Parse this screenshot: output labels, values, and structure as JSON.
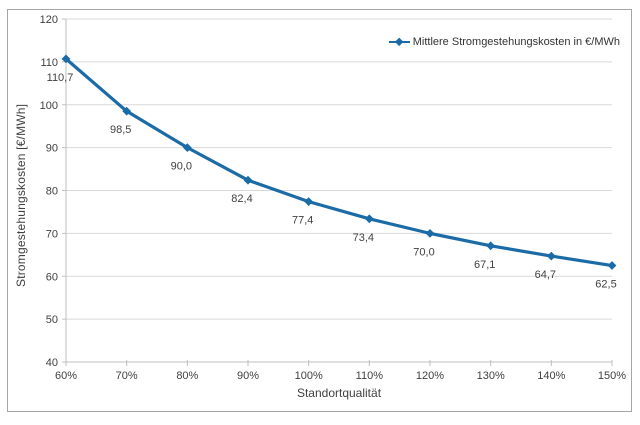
{
  "chart_data": {
    "type": "line",
    "categories": [
      "60%",
      "70%",
      "80%",
      "90%",
      "100%",
      "110%",
      "120%",
      "130%",
      "140%",
      "150%"
    ],
    "values": [
      110.7,
      98.5,
      90.0,
      82.4,
      77.4,
      73.4,
      70.0,
      67.1,
      64.7,
      62.5
    ],
    "point_labels": [
      "110,7",
      "98,5",
      "90,0",
      "82,4",
      "77,4",
      "73,4",
      "70,0",
      "67,1",
      "64,7",
      "62,5"
    ],
    "yticks": [
      40,
      50,
      60,
      70,
      80,
      90,
      100,
      110,
      120
    ],
    "ylim": [
      40,
      120
    ],
    "xlabel": "Standortqualität",
    "ylabel": "Stromgestehungskosten  [€/MWh]",
    "legend": "Mittlere Stromgestehungskosten in €/MWh",
    "legend_position": "top-right-inside",
    "grid": "horizontal",
    "colors": {
      "series_line": "#1b6ba7",
      "marker": "#1b6ba7",
      "gridline": "#d9d9d9",
      "axis_line": "#bfbfbf",
      "tick_text": "#404040",
      "data_label_text": "#3f3f3f",
      "frame_border": "#a6a6a6",
      "background": "#ffffff"
    }
  }
}
